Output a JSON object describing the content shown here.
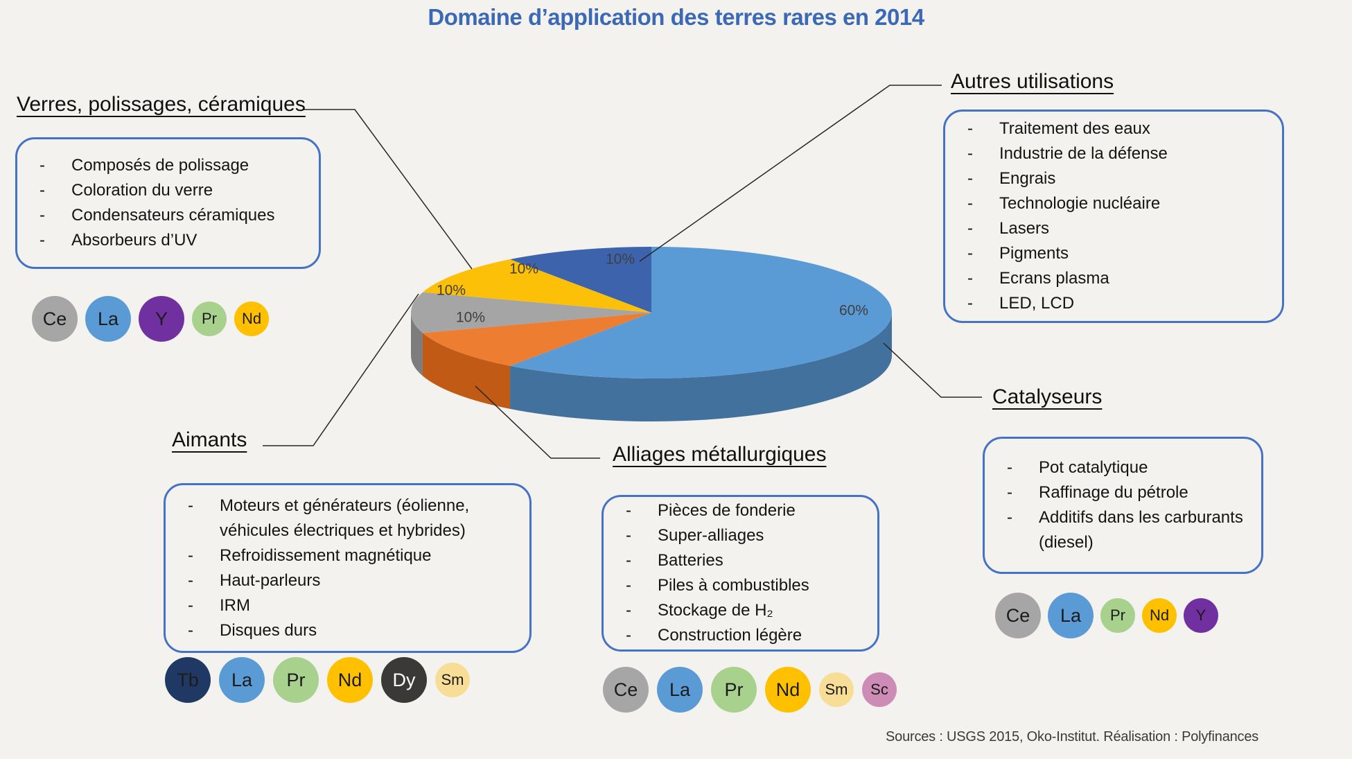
{
  "title": {
    "text": "Domaine d’application des terres rares en 2014",
    "color": "#3c69b5"
  },
  "source_note": "Sources : USGS 2015, Oko-Institut. Réalisation : Polyfinances",
  "accent_colors": {
    "box_border": "#4472c4",
    "callout_line": "#262626"
  },
  "chart_data": {
    "type": "pie",
    "style": "3d",
    "title": "Domaine d’application des terres rares en 2014",
    "unit": "%",
    "start_angle_deg": 0,
    "direction": "clockwise",
    "slices": [
      {
        "label": "Catalyseurs",
        "value": 60,
        "pct_text": "60%",
        "color": "#5b9bd5",
        "side_color": "#41719c"
      },
      {
        "label": "Alliages métallurgiques",
        "value": 10,
        "pct_text": "10%",
        "color": "#ed7d31",
        "side_color": "#c05a15"
      },
      {
        "label": "Aimants",
        "value": 10,
        "pct_text": "10%",
        "color": "#a5a5a5",
        "side_color": "#7d7d7d"
      },
      {
        "label": "Verres, polissages, céramiques",
        "value": 10,
        "pct_text": "10%",
        "color": "#fdc008",
        "side_color": "#bf9000"
      },
      {
        "label": "Autres utilisations",
        "value": 10,
        "pct_text": "10%",
        "color": "#3e63ad",
        "side_color": "#2e4a82"
      }
    ]
  },
  "categories": [
    {
      "id": "verres",
      "heading": "Verres, polissages, céramiques",
      "items": [
        "Composés de polissage",
        "Coloration du verre",
        "Condensateurs céramiques",
        "Absorbeurs d’UV"
      ],
      "elements": [
        {
          "symbol": "Ce",
          "color": "#a6a6a6",
          "size": "large"
        },
        {
          "symbol": "La",
          "color": "#5b9bd5",
          "size": "large"
        },
        {
          "symbol": "Y",
          "color": "#7030a0",
          "size": "large"
        },
        {
          "symbol": "Pr",
          "color": "#a9d18e",
          "size": "small"
        },
        {
          "symbol": "Nd",
          "color": "#ffc000",
          "size": "small"
        }
      ]
    },
    {
      "id": "autres",
      "heading": "Autres utilisations",
      "items": [
        "Traitement des eaux",
        "Industrie de la défense",
        "Engrais",
        "Technologie nucléaire",
        "Lasers",
        "Pigments",
        "Ecrans plasma",
        "LED, LCD"
      ],
      "elements": []
    },
    {
      "id": "aimants",
      "heading": "Aimants",
      "items": [
        "Moteurs et générateurs (éolienne, véhicules électriques et hybrides)",
        "Refroidissement magnétique",
        "Haut-parleurs",
        "IRM",
        "Disques durs"
      ],
      "elements": [
        {
          "symbol": "Tb",
          "color": "#1f3864",
          "size": "large"
        },
        {
          "symbol": "La",
          "color": "#5b9bd5",
          "size": "large"
        },
        {
          "symbol": "Pr",
          "color": "#a9d18e",
          "size": "large"
        },
        {
          "symbol": "Nd",
          "color": "#ffc000",
          "size": "large"
        },
        {
          "symbol": "Dy",
          "color": "#3b3838",
          "size": "large",
          "text": "#ffffff"
        },
        {
          "symbol": "Sm",
          "color": "#f8dd96",
          "size": "small"
        }
      ]
    },
    {
      "id": "alliages",
      "heading": "Alliages métallurgiques",
      "items": [
        "Pièces de fonderie",
        "Super-alliages",
        "Batteries",
        "Piles à combustibles",
        "Stockage de H₂",
        "Construction légère"
      ],
      "elements": [
        {
          "symbol": "Ce",
          "color": "#a6a6a6",
          "size": "large"
        },
        {
          "symbol": "La",
          "color": "#5b9bd5",
          "size": "large"
        },
        {
          "symbol": "Pr",
          "color": "#a9d18e",
          "size": "large"
        },
        {
          "symbol": "Nd",
          "color": "#ffc000",
          "size": "large"
        },
        {
          "symbol": "Sm",
          "color": "#f8dd96",
          "size": "small"
        },
        {
          "symbol": "Sc",
          "color": "#cd8cb6",
          "size": "small"
        }
      ]
    },
    {
      "id": "catalyseurs",
      "heading": "Catalyseurs",
      "items": [
        "Pot catalytique",
        "Raffinage du pétrole",
        "Additifs dans les carburants (diesel)"
      ],
      "elements": [
        {
          "symbol": "Ce",
          "color": "#a6a6a6",
          "size": "large"
        },
        {
          "symbol": "La",
          "color": "#5b9bd5",
          "size": "large"
        },
        {
          "symbol": "Pr",
          "color": "#a9d18e",
          "size": "small"
        },
        {
          "symbol": "Nd",
          "color": "#ffc000",
          "size": "small"
        },
        {
          "symbol": "Y",
          "color": "#7030a0",
          "size": "small"
        }
      ]
    }
  ]
}
